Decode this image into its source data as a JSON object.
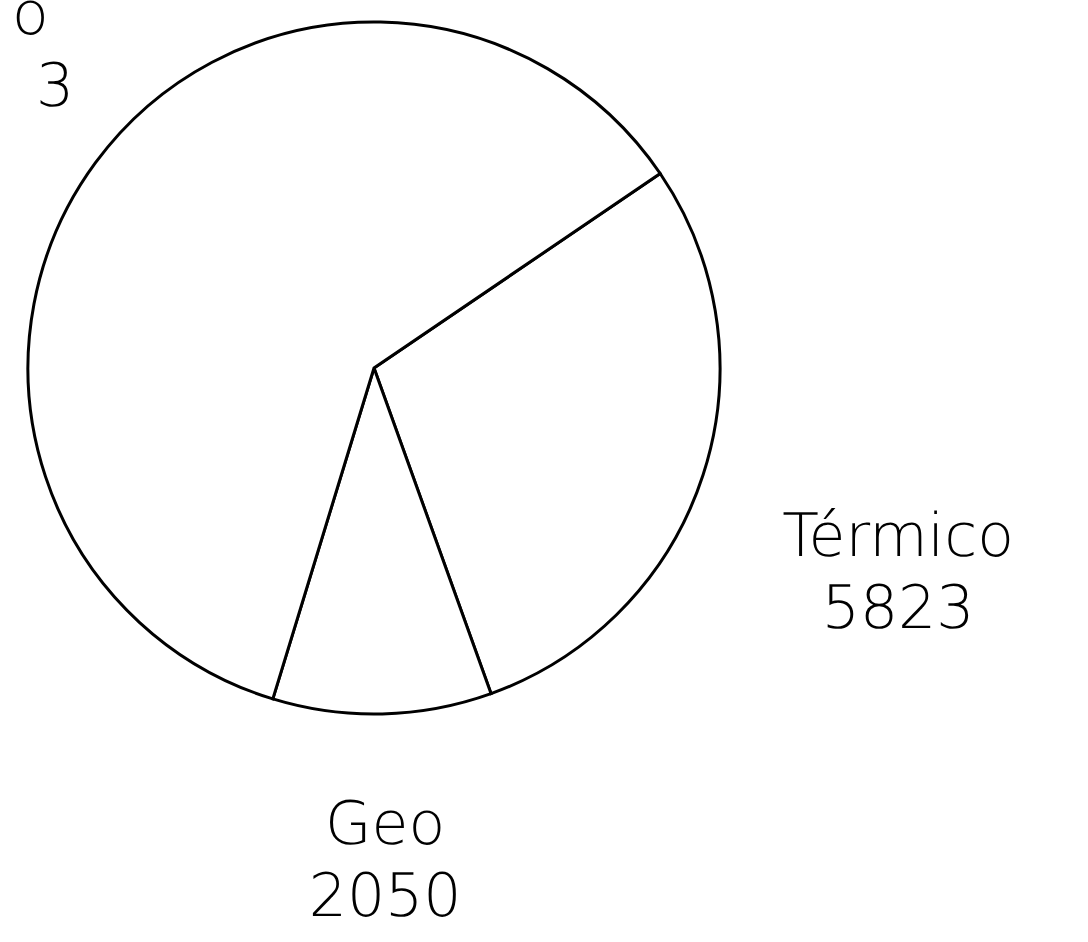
{
  "chart_data": {
    "type": "pie",
    "categories": [
      "Térmico",
      "Geo",
      null
    ],
    "values": [
      5823,
      2050,
      12200
    ],
    "value_labels": [
      "5823",
      "2050",
      null
    ],
    "colors": [
      "#ffffff",
      "#ffffff",
      "#ffffff"
    ],
    "annotations": [
      "o",
      "3"
    ]
  }
}
